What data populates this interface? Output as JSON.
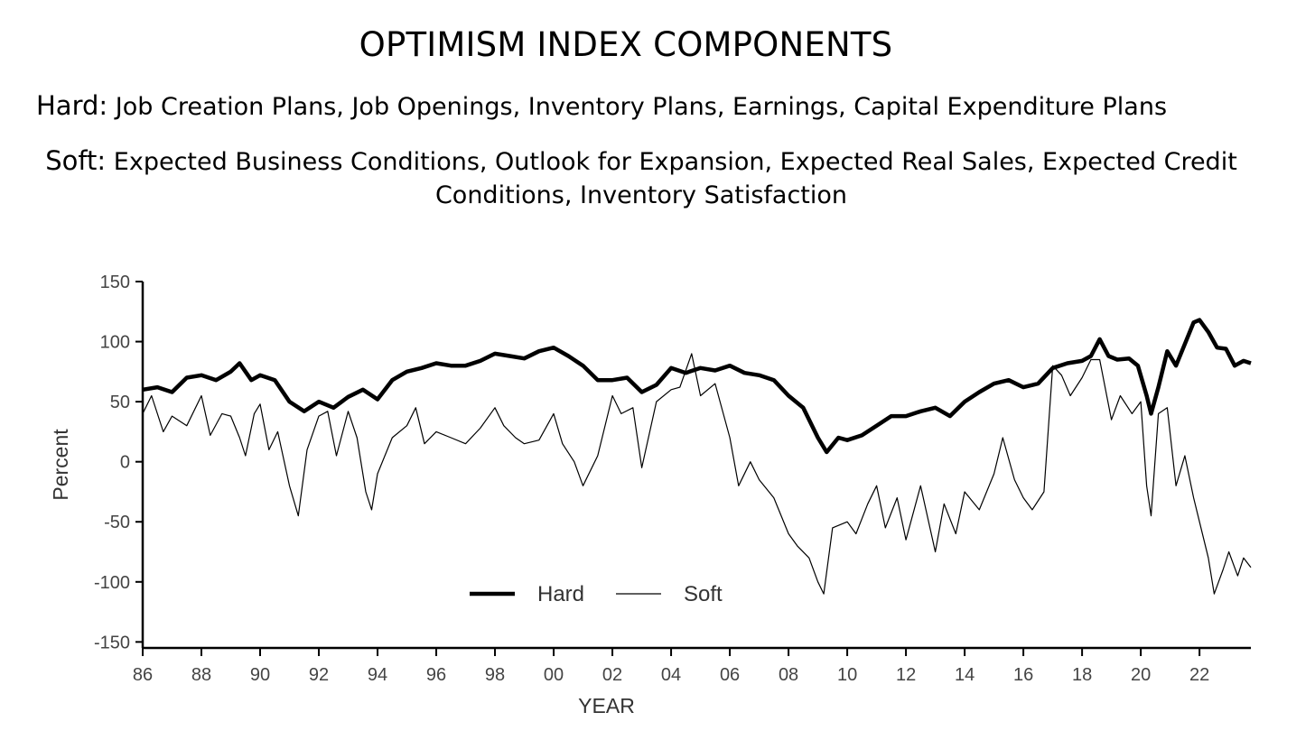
{
  "header": {
    "title": "OPTIMISM INDEX COMPONENTS",
    "hard_label": "Hard:",
    "hard_text": "Job Creation Plans, Job Openings, Inventory Plans, Earnings, Capital Expenditure Plans",
    "soft_label": "Soft:",
    "soft_text": "Expected Business Conditions, Outlook for Expansion, Expected Real Sales, Expected Credit Conditions, Inventory Satisfaction"
  },
  "chart_data": {
    "type": "line",
    "xlabel": "YEAR",
    "ylabel": "Percent",
    "xlim": [
      1986,
      2023.75
    ],
    "ylim": [
      -155,
      150
    ],
    "xticks": [
      1986,
      1988,
      1990,
      1992,
      1994,
      1996,
      1998,
      2000,
      2002,
      2004,
      2006,
      2008,
      2010,
      2012,
      2014,
      2016,
      2018,
      2020,
      2022
    ],
    "xtick_labels": [
      "86",
      "88",
      "90",
      "92",
      "94",
      "96",
      "98",
      "00",
      "02",
      "04",
      "06",
      "08",
      "10",
      "12",
      "14",
      "16",
      "18",
      "20",
      "22"
    ],
    "yticks": [
      150,
      100,
      50,
      0,
      -50,
      -100,
      -150
    ],
    "ytick_labels": [
      "150",
      "100",
      "50",
      "0",
      "-50",
      "-100",
      "-150"
    ],
    "grid": false,
    "legend_position": "bottom-center",
    "series": [
      {
        "name": "Hard",
        "color": "#000000",
        "points": [
          [
            1986.0,
            60
          ],
          [
            1986.5,
            62
          ],
          [
            1987.0,
            58
          ],
          [
            1987.5,
            70
          ],
          [
            1988.0,
            72
          ],
          [
            1988.5,
            68
          ],
          [
            1989.0,
            75
          ],
          [
            1989.3,
            82
          ],
          [
            1989.7,
            68
          ],
          [
            1990.0,
            72
          ],
          [
            1990.5,
            68
          ],
          [
            1991.0,
            50
          ],
          [
            1991.5,
            42
          ],
          [
            1992.0,
            50
          ],
          [
            1992.5,
            45
          ],
          [
            1993.0,
            54
          ],
          [
            1993.5,
            60
          ],
          [
            1994.0,
            52
          ],
          [
            1994.5,
            68
          ],
          [
            1995.0,
            75
          ],
          [
            1995.5,
            78
          ],
          [
            1996.0,
            82
          ],
          [
            1996.5,
            80
          ],
          [
            1997.0,
            80
          ],
          [
            1997.5,
            84
          ],
          [
            1998.0,
            90
          ],
          [
            1998.5,
            88
          ],
          [
            1999.0,
            86
          ],
          [
            1999.5,
            92
          ],
          [
            2000.0,
            95
          ],
          [
            2000.5,
            88
          ],
          [
            2001.0,
            80
          ],
          [
            2001.5,
            68
          ],
          [
            2002.0,
            68
          ],
          [
            2002.5,
            70
          ],
          [
            2003.0,
            58
          ],
          [
            2003.5,
            64
          ],
          [
            2004.0,
            78
          ],
          [
            2004.5,
            74
          ],
          [
            2005.0,
            78
          ],
          [
            2005.5,
            76
          ],
          [
            2006.0,
            80
          ],
          [
            2006.5,
            74
          ],
          [
            2007.0,
            72
          ],
          [
            2007.5,
            68
          ],
          [
            2008.0,
            55
          ],
          [
            2008.5,
            45
          ],
          [
            2009.0,
            20
          ],
          [
            2009.3,
            8
          ],
          [
            2009.7,
            20
          ],
          [
            2010.0,
            18
          ],
          [
            2010.5,
            22
          ],
          [
            2011.0,
            30
          ],
          [
            2011.5,
            38
          ],
          [
            2012.0,
            38
          ],
          [
            2012.5,
            42
          ],
          [
            2013.0,
            45
          ],
          [
            2013.5,
            38
          ],
          [
            2014.0,
            50
          ],
          [
            2014.5,
            58
          ],
          [
            2015.0,
            65
          ],
          [
            2015.5,
            68
          ],
          [
            2016.0,
            62
          ],
          [
            2016.5,
            65
          ],
          [
            2017.0,
            78
          ],
          [
            2017.5,
            82
          ],
          [
            2018.0,
            84
          ],
          [
            2018.3,
            88
          ],
          [
            2018.6,
            102
          ],
          [
            2018.9,
            88
          ],
          [
            2019.2,
            85
          ],
          [
            2019.6,
            86
          ],
          [
            2019.9,
            80
          ],
          [
            2020.2,
            55
          ],
          [
            2020.35,
            40
          ],
          [
            2020.6,
            62
          ],
          [
            2020.9,
            92
          ],
          [
            2021.2,
            80
          ],
          [
            2021.5,
            98
          ],
          [
            2021.8,
            116
          ],
          [
            2022.0,
            118
          ],
          [
            2022.3,
            108
          ],
          [
            2022.6,
            95
          ],
          [
            2022.9,
            94
          ],
          [
            2023.2,
            80
          ],
          [
            2023.5,
            84
          ],
          [
            2023.75,
            82
          ]
        ]
      },
      {
        "name": "Soft",
        "color": "#000000",
        "points": [
          [
            1986.0,
            40
          ],
          [
            1986.3,
            55
          ],
          [
            1986.7,
            25
          ],
          [
            1987.0,
            38
          ],
          [
            1987.5,
            30
          ],
          [
            1988.0,
            55
          ],
          [
            1988.3,
            22
          ],
          [
            1988.7,
            40
          ],
          [
            1989.0,
            38
          ],
          [
            1989.3,
            20
          ],
          [
            1989.5,
            5
          ],
          [
            1989.8,
            40
          ],
          [
            1990.0,
            48
          ],
          [
            1990.3,
            10
          ],
          [
            1990.6,
            25
          ],
          [
            1991.0,
            -20
          ],
          [
            1991.3,
            -45
          ],
          [
            1991.6,
            10
          ],
          [
            1992.0,
            38
          ],
          [
            1992.3,
            42
          ],
          [
            1992.6,
            5
          ],
          [
            1993.0,
            42
          ],
          [
            1993.3,
            20
          ],
          [
            1993.6,
            -25
          ],
          [
            1993.8,
            -40
          ],
          [
            1994.0,
            -10
          ],
          [
            1994.5,
            20
          ],
          [
            1995.0,
            30
          ],
          [
            1995.3,
            45
          ],
          [
            1995.6,
            15
          ],
          [
            1996.0,
            25
          ],
          [
            1996.5,
            20
          ],
          [
            1997.0,
            15
          ],
          [
            1997.5,
            28
          ],
          [
            1998.0,
            45
          ],
          [
            1998.3,
            30
          ],
          [
            1998.7,
            20
          ],
          [
            1999.0,
            15
          ],
          [
            1999.5,
            18
          ],
          [
            2000.0,
            40
          ],
          [
            2000.3,
            15
          ],
          [
            2000.7,
            0
          ],
          [
            2001.0,
            -20
          ],
          [
            2001.5,
            5
          ],
          [
            2002.0,
            55
          ],
          [
            2002.3,
            40
          ],
          [
            2002.7,
            45
          ],
          [
            2003.0,
            -5
          ],
          [
            2003.5,
            50
          ],
          [
            2004.0,
            60
          ],
          [
            2004.3,
            62
          ],
          [
            2004.7,
            90
          ],
          [
            2005.0,
            55
          ],
          [
            2005.5,
            65
          ],
          [
            2006.0,
            20
          ],
          [
            2006.3,
            -20
          ],
          [
            2006.7,
            0
          ],
          [
            2007.0,
            -15
          ],
          [
            2007.5,
            -30
          ],
          [
            2008.0,
            -60
          ],
          [
            2008.3,
            -70
          ],
          [
            2008.7,
            -80
          ],
          [
            2009.0,
            -100
          ],
          [
            2009.2,
            -110
          ],
          [
            2009.5,
            -55
          ],
          [
            2010.0,
            -50
          ],
          [
            2010.3,
            -60
          ],
          [
            2010.7,
            -35
          ],
          [
            2011.0,
            -20
          ],
          [
            2011.3,
            -55
          ],
          [
            2011.7,
            -30
          ],
          [
            2012.0,
            -65
          ],
          [
            2012.5,
            -20
          ],
          [
            2013.0,
            -75
          ],
          [
            2013.3,
            -35
          ],
          [
            2013.7,
            -60
          ],
          [
            2014.0,
            -25
          ],
          [
            2014.5,
            -40
          ],
          [
            2015.0,
            -10
          ],
          [
            2015.3,
            20
          ],
          [
            2015.7,
            -15
          ],
          [
            2016.0,
            -30
          ],
          [
            2016.3,
            -40
          ],
          [
            2016.7,
            -25
          ],
          [
            2017.0,
            80
          ],
          [
            2017.3,
            72
          ],
          [
            2017.6,
            55
          ],
          [
            2018.0,
            70
          ],
          [
            2018.3,
            85
          ],
          [
            2018.6,
            85
          ],
          [
            2019.0,
            35
          ],
          [
            2019.3,
            55
          ],
          [
            2019.7,
            40
          ],
          [
            2020.0,
            50
          ],
          [
            2020.2,
            -20
          ],
          [
            2020.35,
            -45
          ],
          [
            2020.6,
            40
          ],
          [
            2020.9,
            45
          ],
          [
            2021.2,
            -20
          ],
          [
            2021.5,
            5
          ],
          [
            2021.8,
            -30
          ],
          [
            2022.0,
            -50
          ],
          [
            2022.3,
            -80
          ],
          [
            2022.5,
            -110
          ],
          [
            2022.8,
            -90
          ],
          [
            2023.0,
            -75
          ],
          [
            2023.3,
            -95
          ],
          [
            2023.5,
            -80
          ],
          [
            2023.75,
            -88
          ]
        ]
      }
    ]
  }
}
